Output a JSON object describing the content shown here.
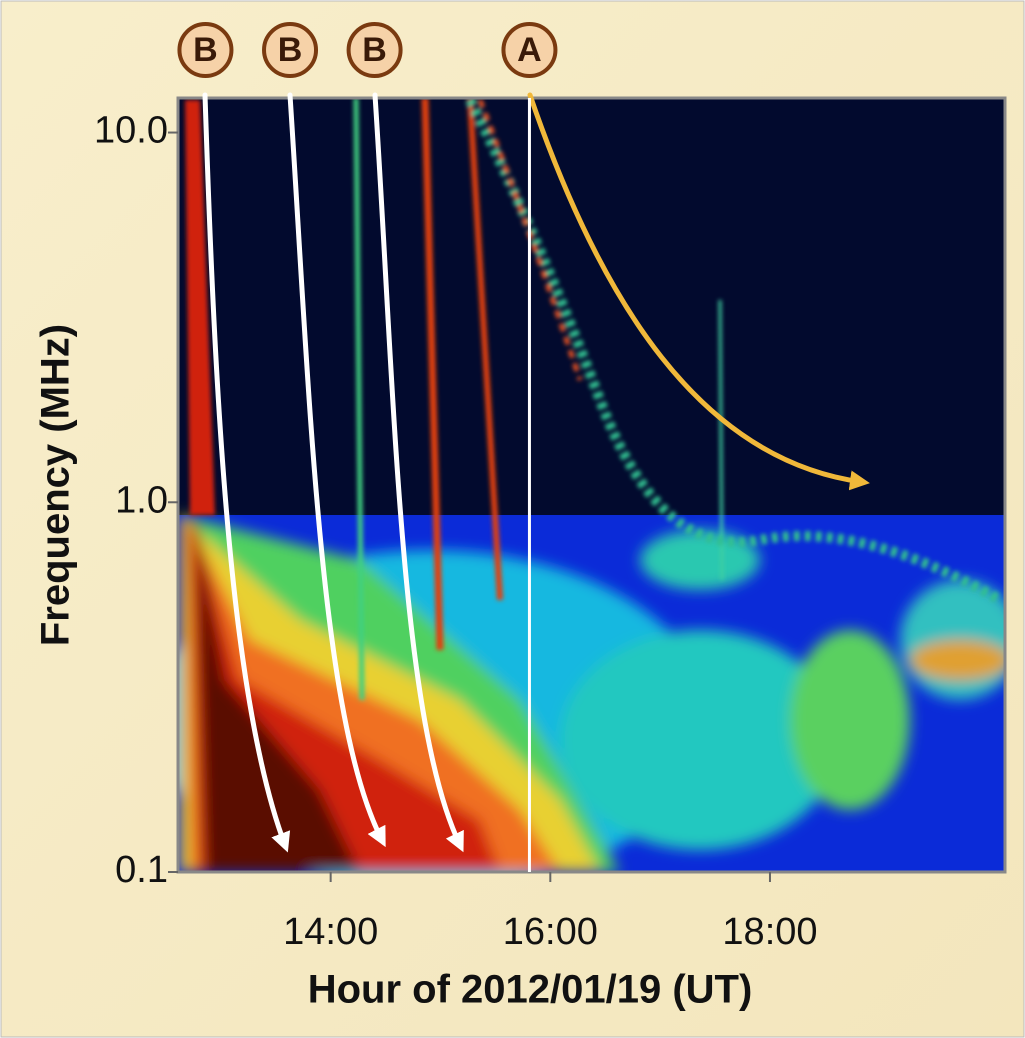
{
  "chart_data": {
    "type": "spectrogram",
    "xlabel": "Hour of 2012/01/19 (UT)",
    "ylabel": "Frequency (MHz)",
    "xlim": [
      12.61,
      20.14
    ],
    "xticks": [
      {
        "value": 14,
        "label": "14:00"
      },
      {
        "value": 16,
        "label": "16:00"
      },
      {
        "value": 18,
        "label": "18:00"
      }
    ],
    "ylim": [
      0.1,
      12.4
    ],
    "yticks": [
      {
        "value": 0.1,
        "label": "0.1"
      },
      {
        "value": 1,
        "label": "1.0"
      },
      {
        "value": 10,
        "label": "10.0"
      }
    ],
    "ylog": true,
    "annotations": [
      {
        "label": "B",
        "x": 12.86
      },
      {
        "label": "B",
        "x": 13.63
      },
      {
        "label": "B",
        "x": 14.4
      },
      {
        "label": "A",
        "x": 15.81
      }
    ]
  }
}
